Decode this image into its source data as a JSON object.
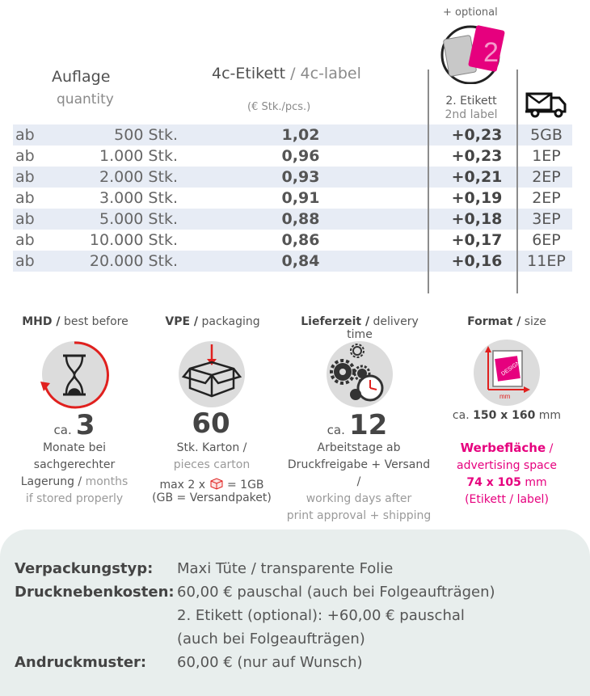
{
  "header": {
    "quantity_de": "Auflage",
    "quantity_en": "quantity",
    "label_de": "4c-Etikett",
    "label_sep": " / ",
    "label_en": "4c-label",
    "price_unit": "(€ Stk./pcs.)",
    "optional_note": "+ optional",
    "second_label_de": "2. Etikett",
    "second_label_en": "2nd label",
    "optional_image_number": "2"
  },
  "icons": {
    "truck": "delivery-truck-icon",
    "hourglass": "hourglass-icon",
    "box": "box-icon",
    "gears": "gears-clock-icon",
    "format": "format-size-icon"
  },
  "table": {
    "rows": [
      {
        "prefix": "ab",
        "qty": "500 Stk.",
        "price": "1,02",
        "extra": "+0,23",
        "ship": "5GB"
      },
      {
        "prefix": "ab",
        "qty": "1.000 Stk.",
        "price": "0,96",
        "extra": "+0,23",
        "ship": "1EP"
      },
      {
        "prefix": "ab",
        "qty": "2.000 Stk.",
        "price": "0,93",
        "extra": "+0,21",
        "ship": "2EP"
      },
      {
        "prefix": "ab",
        "qty": "3.000 Stk.",
        "price": "0,91",
        "extra": "+0,19",
        "ship": "2EP"
      },
      {
        "prefix": "ab",
        "qty": "5.000 Stk.",
        "price": "0,88",
        "extra": "+0,18",
        "ship": "3EP"
      },
      {
        "prefix": "ab",
        "qty": "10.000 Stk.",
        "price": "0,86",
        "extra": "+0,17",
        "ship": "6EP"
      },
      {
        "prefix": "ab",
        "qty": "20.000 Stk.",
        "price": "0,84",
        "extra": "+0,16",
        "ship": "11EP"
      }
    ]
  },
  "info": {
    "mhd": {
      "title_de": "MHD /",
      "title_en": "best before",
      "prefix": "ca.",
      "value": "3",
      "line1": "Monate bei",
      "line2": "sachgerechter",
      "line3_de": "Lagerung /",
      "line3_en": "months",
      "line4_en": "if stored properly"
    },
    "vpe": {
      "title_de": "VPE /",
      "title_en": "packaging",
      "value": "60",
      "line1": "Stk. Karton /",
      "line2_en": "pieces carton",
      "line3a": "max 2 x",
      "line3b": "= 1GB",
      "line4": "(GB = Versandpaket)"
    },
    "delivery": {
      "title_de": "Lieferzeit /",
      "title_en": "delivery time",
      "prefix": "ca.",
      "value": "12",
      "line1": "Arbeitstage ab",
      "line2": "Druckfreigabe + Versand /",
      "line3_en": "working days after",
      "line4_en": "print approval + shipping"
    },
    "format": {
      "title_de": "Format /",
      "title_en": "size",
      "icon_unit": "mm",
      "icon_label": "DESIGN",
      "size_prefix": "ca.",
      "size_value": "150 x 160",
      "size_unit": "mm",
      "space_de": "Werbefläche",
      "space_sep": " /",
      "space_en": "advertising space",
      "space_value": "74 x 105",
      "space_unit": "mm",
      "space_note": "(Etikett / label)"
    }
  },
  "details": {
    "packaging_label": "Verpackungstyp:",
    "packaging_value": "Maxi Tüte / transparente Folie",
    "costs_label": "Drucknebenkosten:",
    "costs_value1": "60,00 € pauschal (auch bei Folgeaufträgen)",
    "costs_value2": "2. Etikett (optional): +60,00 € pauschal",
    "costs_value3": "(auch bei Folgeaufträgen)",
    "proof_label": "Andruckmuster:",
    "proof_value": "60,00 € (nur auf Wunsch)"
  },
  "colors": {
    "accent_magenta": "#e6007e",
    "row_shade": "#e7ecf5",
    "box_bg": "#e8eeed"
  }
}
